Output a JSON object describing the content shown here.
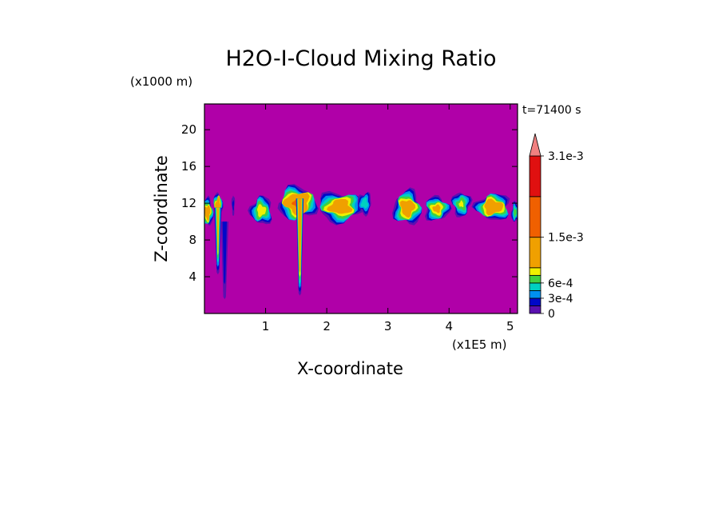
{
  "chart_data": {
    "type": "heatmap",
    "title": "H2O-I-Cloud Mixing Ratio",
    "xlabel": "X-coordinate",
    "ylabel": "Z-coordinate",
    "x_scale_label": "(x1E5 m)",
    "y_scale_label": "(x1000 m)",
    "time_label": "t=71400 s",
    "xlim": [
      0,
      5.12
    ],
    "ylim": [
      0,
      22.8
    ],
    "xticks": [
      1,
      2,
      3,
      4,
      5
    ],
    "yticks": [
      4,
      8,
      12,
      16,
      20
    ],
    "background_color": "#b000a8",
    "colorbar": {
      "levels": [
        0,
        0.00015,
        0.0003,
        0.00045,
        0.0006,
        0.00075,
        0.0009,
        0.0015,
        0.0023,
        0.0031
      ],
      "tick_values": [
        0,
        0.0003,
        0.0006,
        0.0015,
        0.0031
      ],
      "tick_labels": [
        "0",
        "3e-4",
        "6e-4",
        "1.5e-3",
        "3.1e-3"
      ],
      "colors": [
        "#b000a8",
        "#5a10b0",
        "#0008c8",
        "#0090f0",
        "#00d0c0",
        "#40d040",
        "#f0f000",
        "#f0a000",
        "#f06000",
        "#e01010",
        "#f08080"
      ],
      "extend": "max"
    },
    "cloud_blobs": [
      {
        "x": 0.05,
        "z": 11.0,
        "width": 0.18,
        "height": 3.0,
        "peak": 0.0012
      },
      {
        "x": 0.22,
        "z": 11.6,
        "width": 0.14,
        "height": 3.0,
        "peak": 0.0015
      },
      {
        "x": 0.47,
        "z": 11.8,
        "width": 0.05,
        "height": 2.2,
        "peak": 0.0002
      },
      {
        "x": 0.93,
        "z": 11.2,
        "width": 0.35,
        "height": 3.0,
        "peak": 0.0009
      },
      {
        "x": 1.52,
        "z": 12.0,
        "width": 0.6,
        "height": 3.5,
        "peak": 0.0016
      },
      {
        "x": 2.22,
        "z": 11.6,
        "width": 0.72,
        "height": 3.2,
        "peak": 0.0012
      },
      {
        "x": 2.62,
        "z": 12.0,
        "width": 0.22,
        "height": 2.3,
        "peak": 0.0006
      },
      {
        "x": 3.32,
        "z": 11.5,
        "width": 0.45,
        "height": 3.6,
        "peak": 0.0012
      },
      {
        "x": 3.8,
        "z": 11.4,
        "width": 0.4,
        "height": 2.6,
        "peak": 0.001
      },
      {
        "x": 4.2,
        "z": 11.9,
        "width": 0.3,
        "height": 2.6,
        "peak": 0.0008
      },
      {
        "x": 4.72,
        "z": 11.6,
        "width": 0.55,
        "height": 2.8,
        "peak": 0.0013
      },
      {
        "x": 5.08,
        "z": 11.0,
        "width": 0.12,
        "height": 2.2,
        "peak": 0.0007
      }
    ],
    "cloud_streaks": [
      {
        "x": 0.22,
        "z_top": 11.5,
        "z_bottom": 4.5,
        "peak": 0.001
      },
      {
        "x": 0.33,
        "z_top": 10.0,
        "z_bottom": 1.8,
        "peak": 0.0003
      },
      {
        "x": 1.56,
        "z_top": 12.5,
        "z_bottom": 2.2,
        "peak": 0.0015
      }
    ]
  }
}
